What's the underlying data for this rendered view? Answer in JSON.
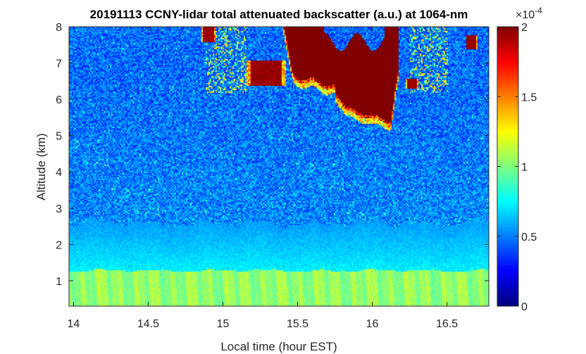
{
  "chart_data": {
    "type": "heatmap",
    "title": "20191113 CCNY-lidar total attenuated backscatter (a.u.) at 1064-nm",
    "xlabel": "Local time (hour EST)",
    "ylabel": "Altitude (km)",
    "xlim": [
      13.97,
      16.78
    ],
    "ylim": [
      0.3,
      8
    ],
    "xticks": [
      14,
      14.5,
      15,
      15.5,
      16,
      16.5
    ],
    "xtick_labels": [
      "14",
      "14.5",
      "15",
      "15.5",
      "16",
      "16.5"
    ],
    "yticks": [
      1,
      2,
      3,
      4,
      5,
      6,
      7,
      8
    ],
    "ytick_labels": [
      "1",
      "2",
      "3",
      "4",
      "5",
      "6",
      "7",
      "8"
    ],
    "colorbar": {
      "colormap": "jet",
      "clim": [
        0,
        2
      ],
      "ticks": [
        0,
        0.5,
        1,
        1.5,
        2
      ],
      "tick_labels": [
        "0",
        "0.5",
        "1",
        "1.5",
        "2"
      ],
      "exponent_label": "×10",
      "exponent_power": "-4"
    },
    "features": {
      "boundary_layer_top_km": 1.3,
      "residual_layer_top_km": 2.6,
      "main_cloud": {
        "time_range": [
          15.4,
          16.17
        ],
        "base_km": 5.25,
        "top_km": 8.0
      },
      "secondary_clouds": [
        {
          "time_range": [
            15.15,
            15.42
          ],
          "base_km": 6.4,
          "top_km": 7.1
        },
        {
          "time_range": [
            14.85,
            14.95
          ],
          "base_km": 7.6,
          "top_km": 8.0
        },
        {
          "time_range": [
            16.22,
            16.3
          ],
          "base_km": 6.3,
          "top_km": 6.6
        },
        {
          "time_range": [
            16.62,
            16.7
          ],
          "base_km": 7.4,
          "top_km": 7.8
        }
      ]
    }
  }
}
